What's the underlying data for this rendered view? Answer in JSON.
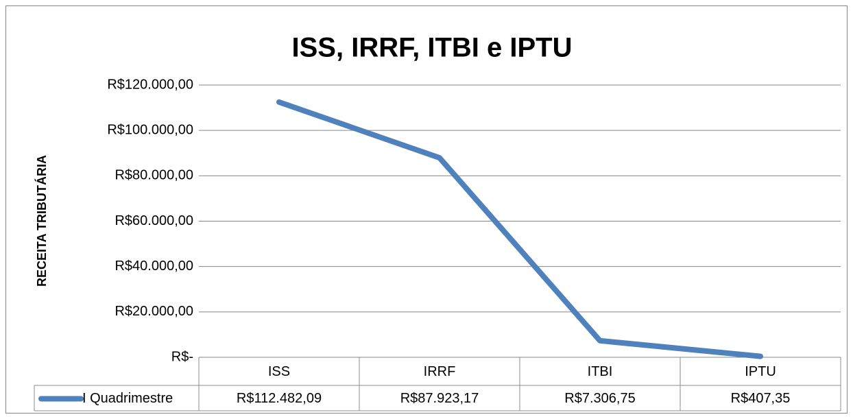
{
  "chart_data": {
    "type": "line",
    "title": "ISS, IRRF, ITBI e IPTU",
    "y_label": "RECEITA TRIBUTÁRIA",
    "categories": [
      "ISS",
      "IRRF",
      "ITBI",
      "IPTU"
    ],
    "series": [
      {
        "name": "I Quadrimestre",
        "color": "#4f81bd",
        "values": [
          112482.09,
          87923.17,
          7306.75,
          407.35
        ],
        "value_labels": [
          "R$112.482,09",
          "R$87.923,17",
          "R$7.306,75",
          "R$407,35"
        ]
      }
    ],
    "ylim": [
      0,
      120000
    ],
    "yticks": [
      {
        "value": 0,
        "label": "R$-"
      },
      {
        "value": 20000,
        "label": "R$20.000,00"
      },
      {
        "value": 40000,
        "label": "R$40.000,00"
      },
      {
        "value": 60000,
        "label": "R$60.000,00"
      },
      {
        "value": 80000,
        "label": "R$80.000,00"
      },
      {
        "value": 100000,
        "label": "R$100.000,00"
      },
      {
        "value": 120000,
        "label": "R$120.000,00"
      }
    ],
    "grid": true
  }
}
